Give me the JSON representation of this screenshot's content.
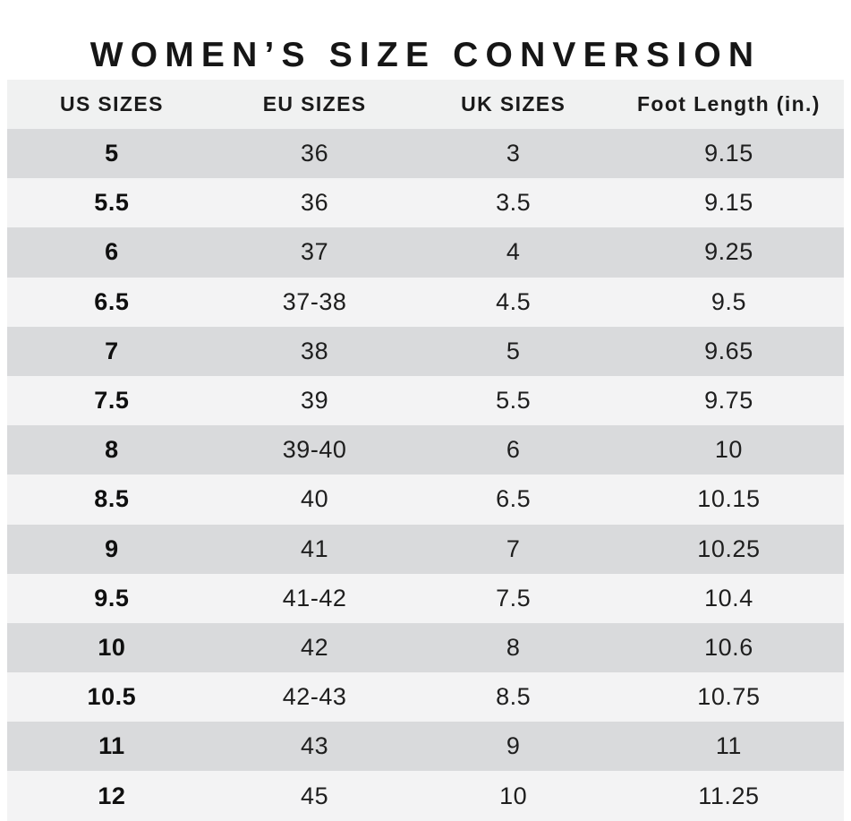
{
  "title": "WOMEN’S SIZE CONVERSION",
  "colors": {
    "page_bg": "#ffffff",
    "header_bg": "#f0f1f1",
    "row_dark": "#d9dadc",
    "row_light": "#f3f3f4",
    "title_text": "#161616",
    "cell_text": "#1e1e1e"
  },
  "chart_data": {
    "type": "table",
    "title": "WOMEN’S SIZE CONVERSION",
    "columns": [
      "US SIZES",
      "EU SIZES",
      "UK SIZES",
      "Foot Length (in.)"
    ],
    "rows": [
      [
        "5",
        "36",
        "3",
        "9.15"
      ],
      [
        "5.5",
        "36",
        "3.5",
        "9.15"
      ],
      [
        "6",
        "37",
        "4",
        "9.25"
      ],
      [
        "6.5",
        "37-38",
        "4.5",
        "9.5"
      ],
      [
        "7",
        "38",
        "5",
        "9.65"
      ],
      [
        "7.5",
        "39",
        "5.5",
        "9.75"
      ],
      [
        "8",
        "39-40",
        "6",
        "10"
      ],
      [
        "8.5",
        "40",
        "6.5",
        "10.15"
      ],
      [
        "9",
        "41",
        "7",
        "10.25"
      ],
      [
        "9.5",
        "41-42",
        "7.5",
        "10.4"
      ],
      [
        "10",
        "42",
        "8",
        "10.6"
      ],
      [
        "10.5",
        "42-43",
        "8.5",
        "10.75"
      ],
      [
        "11",
        "43",
        "9",
        "11"
      ],
      [
        "12",
        "45",
        "10",
        "11.25"
      ]
    ],
    "layout_hints": {
      "row_striping": "odd rows dark gray, even rows light gray, starting dark",
      "us_column_bold": true,
      "alignment": "center"
    }
  }
}
